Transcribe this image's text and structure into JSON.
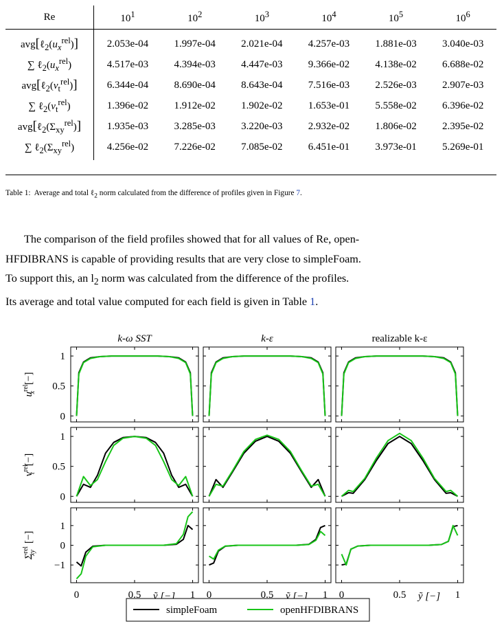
{
  "table": {
    "header": {
      "first": "Re",
      "cols": [
        {
          "base": "10",
          "exp": "1"
        },
        {
          "base": "10",
          "exp": "2"
        },
        {
          "base": "10",
          "exp": "3"
        },
        {
          "base": "10",
          "exp": "4"
        },
        {
          "base": "10",
          "exp": "5"
        },
        {
          "base": "10",
          "exp": "6"
        }
      ]
    },
    "rows": [
      {
        "label_html": "avg<span style=\"font-size:19px\">[</span>ℓ<sub>2</sub>(<i>u</i><sub><i>x</i></sub><sup>rel</sup>)<span style=\"font-size:19px\">]</span>",
        "values": [
          "2.053e-04",
          "1.997e-04",
          "2.021e-04",
          "4.257e-03",
          "1.881e-03",
          "3.040e-03"
        ]
      },
      {
        "label_html": "∑ ℓ<sub>2</sub>(<i>u</i><sub><i>x</i></sub><sup>rel</sup>)",
        "values": [
          "4.517e-03",
          "4.394e-03",
          "4.447e-03",
          "9.366e-02",
          "4.138e-02",
          "6.688e-02"
        ]
      },
      {
        "label_html": "avg<span style=\"font-size:19px\">[</span>ℓ<sub>2</sub>(<i>ν</i><sub>t</sub><sup>rel</sup>)<span style=\"font-size:19px\">]</span>",
        "values": [
          "6.344e-04",
          "8.690e-04",
          "8.643e-04",
          "7.516e-03",
          "2.526e-03",
          "2.907e-03"
        ]
      },
      {
        "label_html": "∑ ℓ<sub>2</sub>(<i>ν</i><sub>t</sub><sup>rel</sup>)",
        "values": [
          "1.396e-02",
          "1.912e-02",
          "1.902e-02",
          "1.653e-01",
          "5.558e-02",
          "6.396e-02"
        ]
      },
      {
        "label_html": "avg<span style=\"font-size:19px\">[</span>ℓ<sub>2</sub>(Σ<sub>xy</sub><sup>rel</sup>)<span style=\"font-size:19px\">]</span>",
        "values": [
          "1.935e-03",
          "3.285e-03",
          "3.220e-03",
          "2.932e-02",
          "1.806e-02",
          "2.395e-02"
        ]
      },
      {
        "label_html": "∑ ℓ<sub>2</sub>(Σ<sub>xy</sub><sup>rel</sup>)",
        "values": [
          "4.256e-02",
          "7.226e-02",
          "7.085e-02",
          "6.451e-01",
          "3.973e-01",
          "5.269e-01"
        ]
      }
    ]
  },
  "caption": {
    "label": "Table 1:",
    "text_before": "Average and total ℓ",
    "sub": "2",
    "text_after": " norm calculated from the difference of profiles given in Figure ",
    "figref": "7",
    "end": "."
  },
  "paragraph": {
    "lines": [
      "The comparison of the field profiles showed that for all values of Re, open-",
      "HFDIBRANS is capable of providing results that are very close to simpleFoam.",
      "To support this, an l",
      "Its average and total value computed for each field is given in Table "
    ],
    "line3_sub": "2",
    "line3_rest": " norm was calculated from the difference of the profiles.",
    "tableref": "1",
    "line4_end": "."
  },
  "figure": {
    "column_titles": [
      "k-ω SST",
      "k-ε",
      "realizable k-ε"
    ],
    "row_labels": [
      {
        "sym": "u",
        "sub": "x",
        "sup": "rel",
        "unit": "[−]"
      },
      {
        "sym": "ν",
        "sub": "t",
        "sup": "rel",
        "unit": "[−]"
      },
      {
        "sym": "Σ",
        "sub": "xy",
        "sup": "rel",
        "unit": "[−]"
      }
    ],
    "xlabel": "ỹ [−]",
    "legend": [
      "simpleFoam",
      "openHFDIBRANS"
    ],
    "colors": {
      "simpleFoam": "#000000",
      "openHFDIBRANS": "#18c418"
    }
  },
  "chart_data": {
    "type": "line",
    "grid": "3x3 panels",
    "x_ticks": [
      "0",
      "0.5",
      "1"
    ],
    "xlim": [
      -0.05,
      1.05
    ],
    "rows": [
      {
        "ylabel": "u_x^rel [−]",
        "ylim": [
          -0.1,
          1.15
        ],
        "yticks": [
          "0",
          "0.5",
          "1"
        ]
      },
      {
        "ylabel": "ν_t^rel [−]",
        "ylim": [
          -0.1,
          1.15
        ],
        "yticks": [
          "0",
          "0.5",
          "1"
        ]
      },
      {
        "ylabel": "Σ_xy^rel [−]",
        "ylim": [
          -1.9,
          1.9
        ],
        "yticks": [
          "−1",
          "0",
          "1"
        ]
      }
    ],
    "panels": [
      {
        "row": 0,
        "col": 0,
        "series": [
          {
            "name": "simpleFoam",
            "x": [
              0,
              0.02,
              0.06,
              0.12,
              0.2,
              0.3,
              0.5,
              0.7,
              0.8,
              0.88,
              0.94,
              0.98,
              1
            ],
            "y": [
              0,
              0.72,
              0.9,
              0.97,
              0.99,
              1,
              1,
              1,
              0.99,
              0.97,
              0.9,
              0.72,
              0
            ]
          },
          {
            "name": "openHFDIBRANS",
            "x": [
              0,
              0.02,
              0.06,
              0.12,
              0.2,
              0.3,
              0.5,
              0.7,
              0.8,
              0.88,
              0.94,
              0.98,
              1
            ],
            "y": [
              0,
              0.7,
              0.89,
              0.96,
              0.99,
              1,
              1,
              1,
              0.99,
              0.96,
              0.89,
              0.7,
              0
            ]
          }
        ]
      },
      {
        "row": 0,
        "col": 1,
        "series": [
          {
            "name": "simpleFoam",
            "x": [
              0,
              0.02,
              0.06,
              0.12,
              0.2,
              0.3,
              0.5,
              0.7,
              0.8,
              0.88,
              0.94,
              0.98,
              1
            ],
            "y": [
              0,
              0.72,
              0.9,
              0.97,
              0.99,
              1,
              1,
              1,
              0.99,
              0.97,
              0.9,
              0.72,
              0
            ]
          },
          {
            "name": "openHFDIBRANS",
            "x": [
              0,
              0.02,
              0.06,
              0.12,
              0.2,
              0.3,
              0.5,
              0.7,
              0.8,
              0.88,
              0.94,
              0.98,
              1
            ],
            "y": [
              0,
              0.7,
              0.89,
              0.96,
              0.99,
              1,
              1,
              1,
              0.99,
              0.96,
              0.89,
              0.7,
              0
            ]
          }
        ]
      },
      {
        "row": 0,
        "col": 2,
        "series": [
          {
            "name": "simpleFoam",
            "x": [
              0,
              0.02,
              0.06,
              0.12,
              0.2,
              0.3,
              0.5,
              0.7,
              0.8,
              0.88,
              0.94,
              0.98,
              1
            ],
            "y": [
              0,
              0.72,
              0.9,
              0.97,
              0.99,
              1,
              1,
              1,
              0.99,
              0.97,
              0.9,
              0.72,
              0
            ]
          },
          {
            "name": "openHFDIBRANS",
            "x": [
              0,
              0.02,
              0.06,
              0.12,
              0.2,
              0.3,
              0.5,
              0.7,
              0.8,
              0.88,
              0.94,
              0.98,
              1
            ],
            "y": [
              0,
              0.7,
              0.89,
              0.96,
              0.99,
              1,
              1,
              1,
              0.99,
              0.96,
              0.89,
              0.7,
              0
            ]
          }
        ]
      },
      {
        "row": 1,
        "col": 0,
        "series": [
          {
            "name": "simpleFoam",
            "x": [
              0,
              0.06,
              0.12,
              0.18,
              0.25,
              0.32,
              0.4,
              0.5,
              0.6,
              0.68,
              0.75,
              0.82,
              0.88,
              0.94,
              1
            ],
            "y": [
              0,
              0.2,
              0.15,
              0.35,
              0.72,
              0.9,
              0.98,
              1,
              0.98,
              0.9,
              0.72,
              0.35,
              0.15,
              0.2,
              0
            ]
          },
          {
            "name": "openHFDIBRANS",
            "x": [
              0,
              0.06,
              0.12,
              0.18,
              0.25,
              0.32,
              0.4,
              0.5,
              0.6,
              0.68,
              0.75,
              0.82,
              0.88,
              0.94,
              1
            ],
            "y": [
              0,
              0.33,
              0.18,
              0.28,
              0.58,
              0.85,
              0.97,
              1,
              0.97,
              0.85,
              0.58,
              0.28,
              0.18,
              0.33,
              0
            ]
          }
        ]
      },
      {
        "row": 1,
        "col": 1,
        "series": [
          {
            "name": "simpleFoam",
            "x": [
              0,
              0.06,
              0.12,
              0.2,
              0.3,
              0.4,
              0.5,
              0.6,
              0.7,
              0.8,
              0.88,
              0.94,
              1
            ],
            "y": [
              0,
              0.28,
              0.15,
              0.4,
              0.72,
              0.92,
              1,
              0.92,
              0.72,
              0.4,
              0.15,
              0.28,
              0
            ]
          },
          {
            "name": "openHFDIBRANS",
            "x": [
              0,
              0.06,
              0.12,
              0.2,
              0.3,
              0.4,
              0.5,
              0.6,
              0.7,
              0.8,
              0.88,
              0.94,
              1
            ],
            "y": [
              0,
              0.2,
              0.17,
              0.42,
              0.75,
              0.95,
              1.02,
              0.95,
              0.75,
              0.42,
              0.17,
              0.2,
              0
            ]
          }
        ]
      },
      {
        "row": 1,
        "col": 2,
        "series": [
          {
            "name": "simpleFoam",
            "x": [
              0,
              0.06,
              0.1,
              0.2,
              0.3,
              0.4,
              0.5,
              0.6,
              0.7,
              0.8,
              0.9,
              0.94,
              1
            ],
            "y": [
              0,
              0.06,
              0.05,
              0.28,
              0.6,
              0.88,
              1,
              0.88,
              0.6,
              0.28,
              0.05,
              0.06,
              0
            ]
          },
          {
            "name": "openHFDIBRANS",
            "x": [
              0,
              0.06,
              0.1,
              0.2,
              0.3,
              0.4,
              0.5,
              0.6,
              0.7,
              0.8,
              0.9,
              0.94,
              1
            ],
            "y": [
              0,
              0.1,
              0.08,
              0.3,
              0.64,
              0.93,
              1.05,
              0.93,
              0.64,
              0.3,
              0.08,
              0.1,
              0
            ]
          }
        ]
      },
      {
        "row": 2,
        "col": 0,
        "series": [
          {
            "name": "simpleFoam",
            "x": [
              0,
              0.04,
              0.08,
              0.14,
              0.25,
              0.5,
              0.75,
              0.86,
              0.92,
              0.96,
              1
            ],
            "y": [
              -0.85,
              -1.05,
              -0.35,
              -0.05,
              0,
              0,
              0,
              0.05,
              0.3,
              1,
              0.8
            ]
          },
          {
            "name": "openHFDIBRANS",
            "x": [
              0,
              0.04,
              0.08,
              0.14,
              0.25,
              0.5,
              0.75,
              0.86,
              0.92,
              0.96,
              1
            ],
            "y": [
              -1.7,
              -1.45,
              -0.55,
              -0.08,
              0,
              0,
              0,
              0.08,
              0.55,
              1.45,
              1.7
            ]
          }
        ]
      },
      {
        "row": 2,
        "col": 1,
        "series": [
          {
            "name": "simpleFoam",
            "x": [
              0,
              0.04,
              0.08,
              0.14,
              0.25,
              0.5,
              0.75,
              0.86,
              0.92,
              0.96,
              1
            ],
            "y": [
              -1,
              -0.9,
              -0.3,
              -0.05,
              0,
              0,
              0,
              0.05,
              0.3,
              0.9,
              1
            ]
          },
          {
            "name": "openHFDIBRANS",
            "x": [
              0,
              0.04,
              0.08,
              0.14,
              0.25,
              0.5,
              0.75,
              0.86,
              0.92,
              0.96,
              1
            ],
            "y": [
              -0.55,
              -0.7,
              -0.25,
              -0.04,
              0,
              0,
              0,
              0.04,
              0.25,
              0.7,
              0.5
            ]
          }
        ]
      },
      {
        "row": 2,
        "col": 2,
        "series": [
          {
            "name": "simpleFoam",
            "x": [
              0,
              0.04,
              0.08,
              0.14,
              0.25,
              0.5,
              0.75,
              0.86,
              0.92,
              0.96,
              1
            ],
            "y": [
              -1,
              -0.95,
              -0.2,
              -0.04,
              0,
              0,
              0,
              0.04,
              0.2,
              0.95,
              1
            ]
          },
          {
            "name": "openHFDIBRANS",
            "x": [
              0,
              0.04,
              0.08,
              0.14,
              0.25,
              0.5,
              0.75,
              0.86,
              0.92,
              0.96,
              1
            ],
            "y": [
              -0.45,
              -1,
              -0.2,
              -0.04,
              0,
              0,
              0,
              0.04,
              0.2,
              1,
              0.5
            ]
          }
        ]
      }
    ]
  }
}
